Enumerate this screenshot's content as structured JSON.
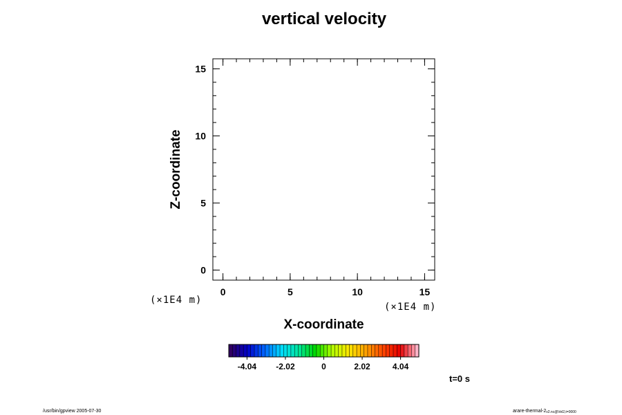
{
  "chart_data": {
    "type": "heatmap",
    "title": "vertical velocity",
    "xlabel": "X-coordinate",
    "ylabel": "Z-coordinate",
    "x_unit": "(×1E4 m)",
    "y_unit": "(×1E4 m)",
    "xlim": [
      -0.75,
      15.75
    ],
    "ylim": [
      -0.75,
      15.75
    ],
    "x_ticks": [
      0,
      5,
      10,
      15
    ],
    "y_ticks": [
      0,
      5,
      10,
      15
    ],
    "x_ticks_minor": [
      0,
      1,
      2,
      3,
      4,
      5,
      6,
      7,
      8,
      9,
      10,
      11,
      12,
      13,
      14,
      15
    ],
    "y_ticks_minor": [
      0,
      1,
      2,
      3,
      4,
      5,
      6,
      7,
      8,
      9,
      10,
      11,
      12,
      13,
      14,
      15
    ],
    "values": [],
    "colorbar": {
      "range": [
        -5.0,
        5.0
      ],
      "levels": 52,
      "tick_values": [
        -4.04,
        -2.02,
        0,
        2.02,
        4.04
      ],
      "tick_labels": [
        "-4.04",
        "-2.02",
        "0",
        "2.02",
        "4.04"
      ],
      "colors": [
        "#300060",
        "#0000c8",
        "#0064ff",
        "#00dcff",
        "#00e6a0",
        "#00d700",
        "#b4ff00",
        "#ffe600",
        "#ffa000",
        "#ff4600",
        "#e60000",
        "#ffb4c8"
      ]
    },
    "grid": false
  },
  "time_label": "t=0 s",
  "footer": {
    "left": "/usr/bin/gpview 2005-07-30",
    "right_main": "arare-thermal-2",
    "right_sub": "v2.nc@Vel2,t=0000"
  }
}
